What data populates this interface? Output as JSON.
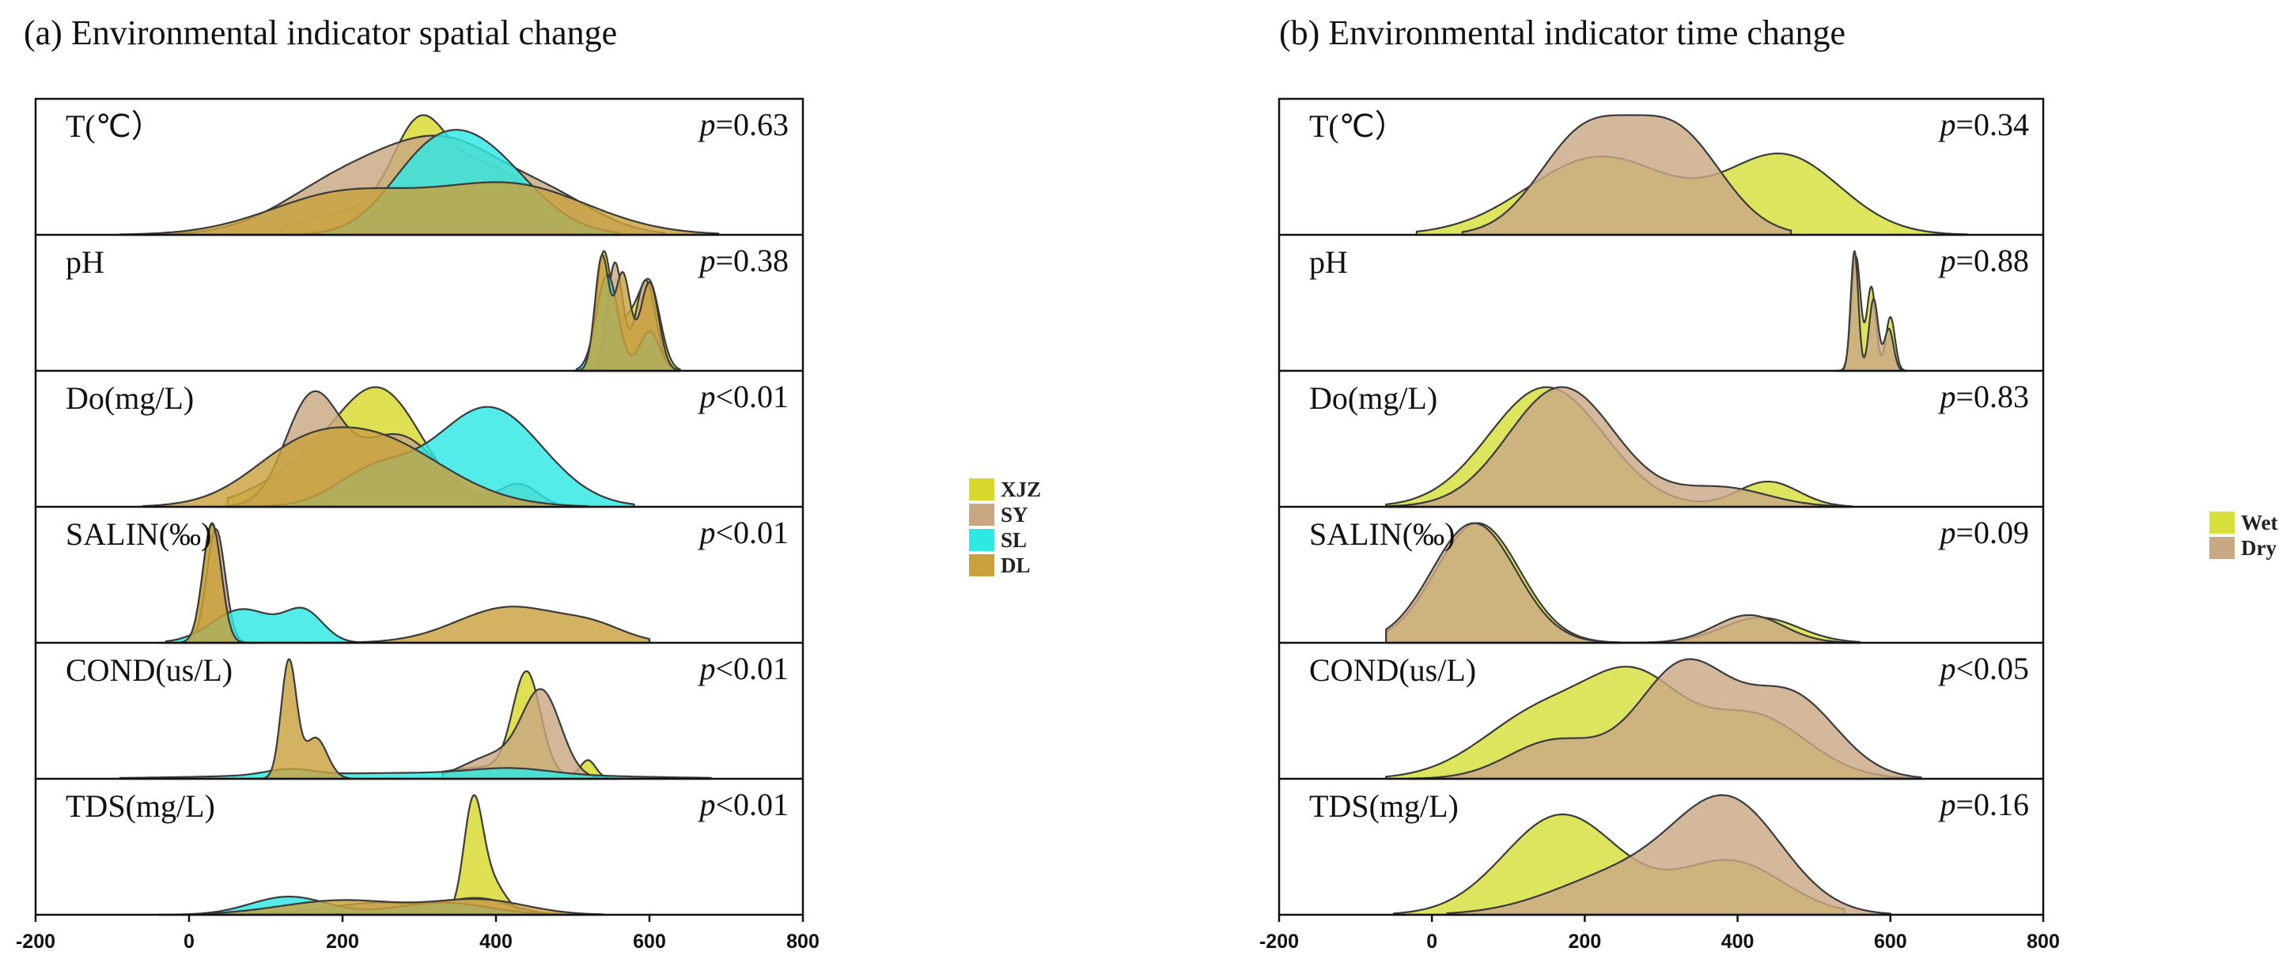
{
  "chart_data": [
    {
      "type": "area",
      "id": "a",
      "title": "(a)  Environmental indicator spatial change",
      "xlim": [
        -200,
        800
      ],
      "xticks": [
        "-200",
        "0",
        "200",
        "400",
        "600",
        "800"
      ],
      "series_names": [
        "XJZ",
        "SY",
        "SL",
        "DL"
      ],
      "colors": {
        "XJZ": "#d8d82c",
        "SY": "#c9a782",
        "SL": "#2ee8e4",
        "DL": "#c9a23f"
      },
      "rows": [
        {
          "label": "T(℃）",
          "p_prefix": "p",
          "p_suffix": "=0.63",
          "series": [
            {
              "name": "XJZ",
              "comps": [
                [
                  300,
                  35,
                  1.0
                ],
                [
                  390,
                  55,
                  0.75
                ],
                [
                  220,
                  70,
                  0.25
                ]
              ],
              "range": [
                120,
                560
              ]
            },
            {
              "name": "SY",
              "comps": [
                [
                  200,
                  80,
                  0.55
                ],
                [
                  340,
                  80,
                  0.95
                ],
                [
                  480,
                  60,
                  0.3
                ]
              ],
              "range": [
                -70,
                620
              ]
            },
            {
              "name": "SL",
              "comps": [
                [
                  370,
                  70,
                  1.0
                ],
                [
                  300,
                  50,
                  0.35
                ]
              ],
              "range": [
                150,
                560
              ]
            },
            {
              "name": "DL",
              "comps": [
                [
                  200,
                  95,
                  0.45
                ],
                [
                  420,
                  100,
                  0.55
                ]
              ],
              "range": [
                -90,
                690
              ]
            }
          ]
        },
        {
          "label": "pH",
          "p_prefix": "p",
          "p_suffix": "=0.38",
          "series": [
            {
              "name": "XJZ",
              "comps": [
                [
                  540,
                  10,
                  1.0
                ],
                [
                  600,
                  14,
                  0.75
                ],
                [
                  570,
                  15,
                  0.4
                ]
              ],
              "range": [
                500,
                640
              ]
            },
            {
              "name": "SY",
              "comps": [
                [
                  555,
                  10,
                  0.95
                ],
                [
                  595,
                  13,
                  0.8
                ]
              ],
              "range": [
                510,
                640
              ]
            },
            {
              "name": "SL",
              "comps": [
                [
                  545,
                  14,
                  0.85
                ],
                [
                  600,
                  13,
                  0.35
                ]
              ],
              "range": [
                505,
                640
              ]
            },
            {
              "name": "DL",
              "comps": [
                [
                  538,
                  9,
                  1.0
                ],
                [
                  565,
                  10,
                  0.85
                ],
                [
                  600,
                  12,
                  0.78
                ]
              ],
              "range": [
                505,
                640
              ]
            }
          ]
        },
        {
          "label": "Do(mg/L)",
          "p_prefix": "p",
          "p_suffix": "<0.01",
          "series": [
            {
              "name": "XJZ",
              "comps": [
                [
                  250,
                  55,
                  1.0
                ],
                [
                  150,
                  60,
                  0.3
                ]
              ],
              "range": [
                50,
                400
              ]
            },
            {
              "name": "SY",
              "comps": [
                [
                  160,
                  35,
                  0.95
                ],
                [
                  270,
                  55,
                  0.65
                ],
                [
                  430,
                  25,
                  0.2
                ]
              ],
              "range": [
                30,
                480
              ]
            },
            {
              "name": "SL",
              "comps": [
                [
                  390,
                  70,
                  0.9
                ],
                [
                  240,
                  50,
                  0.3
                ]
              ],
              "range": [
                90,
                580
              ]
            },
            {
              "name": "DL",
              "comps": [
                [
                  230,
                  95,
                  0.65
                ],
                [
                  130,
                  60,
                  0.2
                ]
              ],
              "range": [
                -60,
                520
              ]
            }
          ]
        },
        {
          "label": "SALIN(‰)",
          "p_prefix": "p",
          "p_suffix": "<0.01",
          "series": [
            {
              "name": "XJZ",
              "comps": [
                [
                  30,
                  12,
                  1.0
                ]
              ],
              "range": [
                -20,
                90
              ]
            },
            {
              "name": "SY",
              "comps": [
                [
                  35,
                  12,
                  0.95
                ]
              ],
              "range": [
                -20,
                90
              ]
            },
            {
              "name": "SL",
              "comps": [
                [
                  70,
                  40,
                  0.28
                ],
                [
                  150,
                  25,
                  0.25
                ]
              ],
              "range": [
                -30,
                220
              ]
            },
            {
              "name": "DL",
              "comps": [
                [
                  30,
                  12,
                  1.0
                ],
                [
                  420,
                  70,
                  0.3
                ],
                [
                  530,
                  40,
                  0.1
                ]
              ],
              "range": [
                -40,
                600
              ]
            }
          ]
        },
        {
          "label": "COND(us/L)",
          "p_prefix": "p",
          "p_suffix": "<0.01",
          "series": [
            {
              "name": "XJZ",
              "comps": [
                [
                  440,
                  18,
                  0.85
                ],
                [
                  520,
                  10,
                  0.15
                ],
                [
                  390,
                  60,
                  0.1
                ]
              ],
              "range": [
                330,
                560
              ]
            },
            {
              "name": "SY",
              "comps": [
                [
                  460,
                  25,
                  0.7
                ],
                [
                  400,
                  40,
                  0.2
                ]
              ],
              "range": [
                330,
                560
              ]
            },
            {
              "name": "SL",
              "comps": [
                [
                  300,
                  200,
                  0.05
                ],
                [
                  130,
                  30,
                  0.05
                ],
                [
                  420,
                  50,
                  0.05
                ]
              ],
              "range": [
                -90,
                680
              ]
            },
            {
              "name": "DL",
              "comps": [
                [
                  130,
                  10,
                  1.0
                ],
                [
                  165,
                  15,
                  0.35
                ]
              ],
              "range": [
                90,
                210
              ]
            }
          ]
        },
        {
          "label": "TDS(mg/L)",
          "p_prefix": "p",
          "p_suffix": "<0.01",
          "series": [
            {
              "name": "XJZ",
              "comps": [
                [
                  370,
                  12,
                  0.8
                ],
                [
                  390,
                  20,
                  0.3
                ]
              ],
              "range": [
                320,
                430
              ]
            },
            {
              "name": "SY",
              "comps": [
                [
                  250,
                  70,
                  0.1
                ],
                [
                  380,
                  40,
                  0.12
                ]
              ],
              "range": [
                60,
                520
              ]
            },
            {
              "name": "SL",
              "comps": [
                [
                  130,
                  50,
                  0.15
                ],
                [
                  330,
                  60,
                  0.1
                ]
              ],
              "range": [
                -40,
                460
              ]
            },
            {
              "name": "DL",
              "comps": [
                [
                  200,
                  80,
                  0.12
                ],
                [
                  380,
                  60,
                  0.12
                ]
              ],
              "range": [
                20,
                540
              ]
            }
          ]
        }
      ]
    },
    {
      "type": "area",
      "id": "b",
      "title": "(b)  Environmental indicator time change",
      "xlim": [
        -200,
        800
      ],
      "xticks": [
        "-200",
        "0",
        "200",
        "400",
        "600",
        "800"
      ],
      "series_names": [
        "Wet",
        "Dry"
      ],
      "colors": {
        "Wet": "#d6df3c",
        "Dry": "#c9a885"
      },
      "rows": [
        {
          "label": "T(℃）",
          "p_prefix": "p",
          "p_suffix": "=0.34",
          "series": [
            {
              "name": "Wet",
              "comps": [
                [
                  220,
                  95,
                  0.75
                ],
                [
                  460,
                  75,
                  0.75
                ]
              ],
              "range": [
                -20,
                700
              ]
            },
            {
              "name": "Dry",
              "comps": [
                [
                  200,
                  60,
                  0.95
                ],
                [
                  320,
                  60,
                  0.95
                ]
              ],
              "range": [
                40,
                470
              ]
            }
          ]
        },
        {
          "label": "pH",
          "p_prefix": "p",
          "p_suffix": "=0.88",
          "series": [
            {
              "name": "Wet",
              "comps": [
                [
                  555,
                  6,
                  0.95
                ],
                [
                  575,
                  6,
                  0.7
                ],
                [
                  600,
                  6,
                  0.45
                ]
              ],
              "range": [
                530,
                620
              ]
            },
            {
              "name": "Dry",
              "comps": [
                [
                  553,
                  5,
                  1.0
                ],
                [
                  578,
                  6,
                  0.6
                ],
                [
                  598,
                  6,
                  0.35
                ]
              ],
              "range": [
                530,
                620
              ]
            }
          ]
        },
        {
          "label": "Do(mg/L)",
          "p_prefix": "p",
          "p_suffix": "=0.83",
          "series": [
            {
              "name": "Wet",
              "comps": [
                [
                  150,
                  75,
                  0.95
                ],
                [
                  440,
                  40,
                  0.2
                ]
              ],
              "range": [
                -60,
                550
              ]
            },
            {
              "name": "Dry",
              "comps": [
                [
                  170,
                  70,
                  0.95
                ],
                [
                  380,
                  60,
                  0.15
                ]
              ],
              "range": [
                -60,
                550
              ]
            }
          ]
        },
        {
          "label": "SALIN(‰)",
          "p_prefix": "p",
          "p_suffix": "=0.09",
          "series": [
            {
              "name": "Wet",
              "comps": [
                [
                  60,
                  55,
                  0.95
                ],
                [
                  430,
                  50,
                  0.2
                ]
              ],
              "range": [
                -60,
                560
              ]
            },
            {
              "name": "Dry",
              "comps": [
                [
                  55,
                  55,
                  0.95
                ],
                [
                  415,
                  45,
                  0.22
                ]
              ],
              "range": [
                -60,
                560
              ]
            }
          ]
        },
        {
          "label": "COND(us/L)",
          "p_prefix": "p",
          "p_suffix": "<0.05",
          "series": [
            {
              "name": "Wet",
              "comps": [
                [
                  150,
                  80,
                  0.55
                ],
                [
                  270,
                  60,
                  0.65
                ],
                [
                  420,
                  70,
                  0.5
                ]
              ],
              "range": [
                -60,
                640
              ]
            },
            {
              "name": "Dry",
              "comps": [
                [
                  160,
                  60,
                  0.3
                ],
                [
                  330,
                  60,
                  0.9
                ],
                [
                  470,
                  60,
                  0.65
                ]
              ],
              "range": [
                -30,
                640
              ]
            }
          ]
        },
        {
          "label": "TDS(mg/L)",
          "p_prefix": "p",
          "p_suffix": "=0.16",
          "series": [
            {
              "name": "Wet",
              "comps": [
                [
                  170,
                  75,
                  0.75
                ],
                [
                  390,
                  70,
                  0.4
                ]
              ],
              "range": [
                -50,
                540
              ]
            },
            {
              "name": "Dry",
              "comps": [
                [
                  250,
                  90,
                  0.3
                ],
                [
                  390,
                  70,
                  0.8
                ]
              ],
              "range": [
                20,
                600
              ]
            }
          ]
        }
      ]
    }
  ]
}
